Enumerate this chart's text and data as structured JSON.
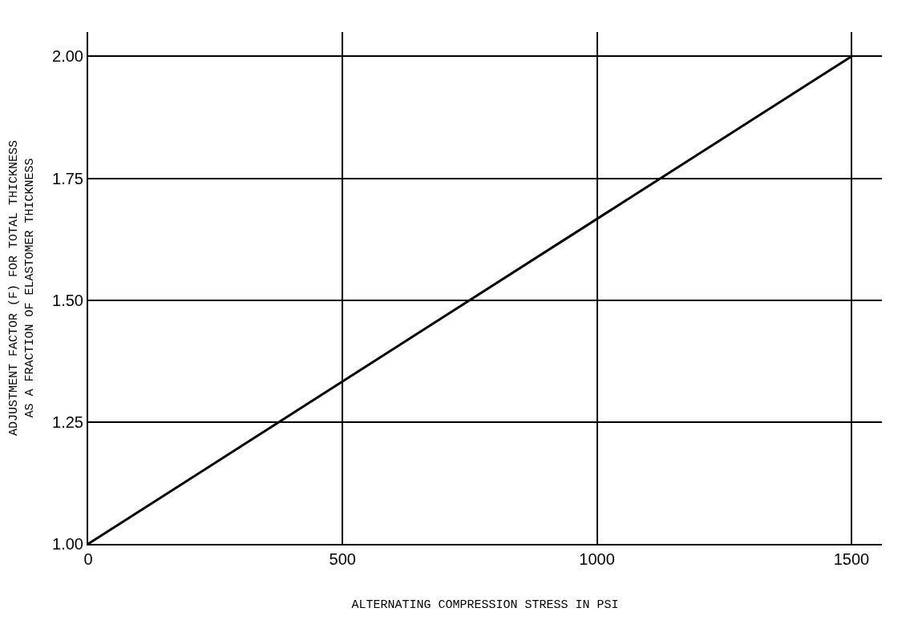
{
  "chart_data": {
    "type": "line",
    "xlabel": "ALTERNATING COMPRESSION STRESS IN PSI",
    "ylabel": "ADJUSTMENT FACTOR (F) FOR TOTAL THICKNESS\nAS A FRACTION OF ELASTOMER THICKNESS",
    "x": [
      0,
      1500
    ],
    "series": [
      {
        "color": "#000000",
        "values": [
          1.0,
          2.0
        ]
      }
    ],
    "xlim": [
      0,
      1560
    ],
    "ylim": [
      1.0,
      2.05
    ],
    "xticks": [
      0,
      500,
      1000,
      1500
    ],
    "yticks": [
      {
        "value": 1.0,
        "label": "1.00"
      },
      1.25,
      {
        "value": 1.5,
        "label": "1.50"
      },
      1.75,
      {
        "value": 2.0,
        "label": "2.00"
      }
    ],
    "grid": true,
    "legend": false,
    "marker": "none",
    "line_style": "solid"
  }
}
